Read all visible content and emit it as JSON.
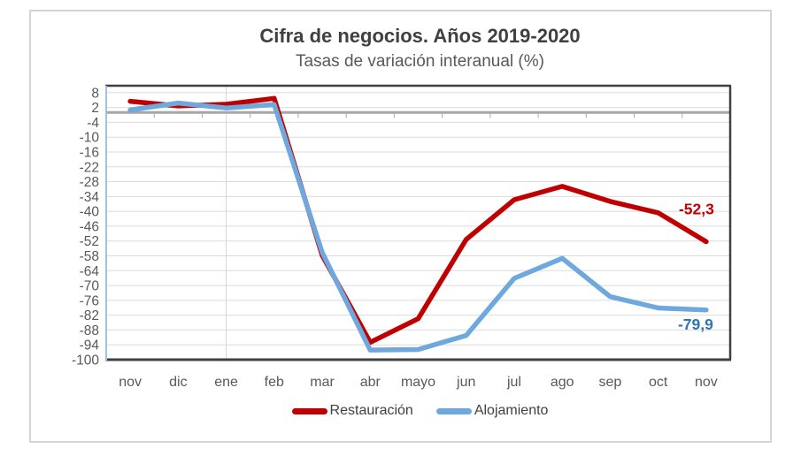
{
  "chart": {
    "title": "Cifra de negocios. Años 2019-2020",
    "subtitle": "Tasas de variación interanual (%)"
  },
  "chart_data": {
    "type": "line",
    "title": "Cifra de negocios. Años 2019-2020",
    "subtitle": "Tasas de variación interanual (%)",
    "categories": [
      "nov",
      "dic",
      "ene",
      "feb",
      "mar",
      "abr",
      "mayo",
      "jun",
      "jul",
      "ago",
      "sep",
      "oct",
      "nov"
    ],
    "series": [
      {
        "name": "Restauración",
        "color": "#c00000",
        "label_color": "#c00000",
        "end_label": "-52,3",
        "values": [
          4.5,
          2.6,
          3.3,
          5.7,
          -57.8,
          -93.0,
          -83.4,
          -51.4,
          -35.3,
          -29.9,
          -36.0,
          -40.6,
          -52.3
        ]
      },
      {
        "name": "Alojamiento",
        "color": "#6fa8dc",
        "label_color": "#2e75b6",
        "end_label": "-79,9",
        "values": [
          1.0,
          3.8,
          1.8,
          3.2,
          -56.6,
          -96.1,
          -95.9,
          -90.2,
          -67.1,
          -59.0,
          -74.5,
          -79.1,
          -79.9
        ]
      }
    ],
    "xlabel": "",
    "ylabel": "",
    "ylim": [
      -100,
      10.8
    ],
    "yticks": [
      8,
      2,
      -4,
      -10,
      -16,
      -22,
      -28,
      -34,
      -40,
      -46,
      -52,
      -58,
      -64,
      -70,
      -76,
      -82,
      -88,
      -94,
      -100
    ],
    "grid": true,
    "legend_position": "bottom",
    "year_divider_at_category": "ene",
    "axis_colors": {
      "gridline": "#dbdbdb",
      "zero_line": "#a6a6a6",
      "plot_border": "#404040",
      "left_border": "#9dc3e6",
      "tick_text": "#595959"
    }
  }
}
